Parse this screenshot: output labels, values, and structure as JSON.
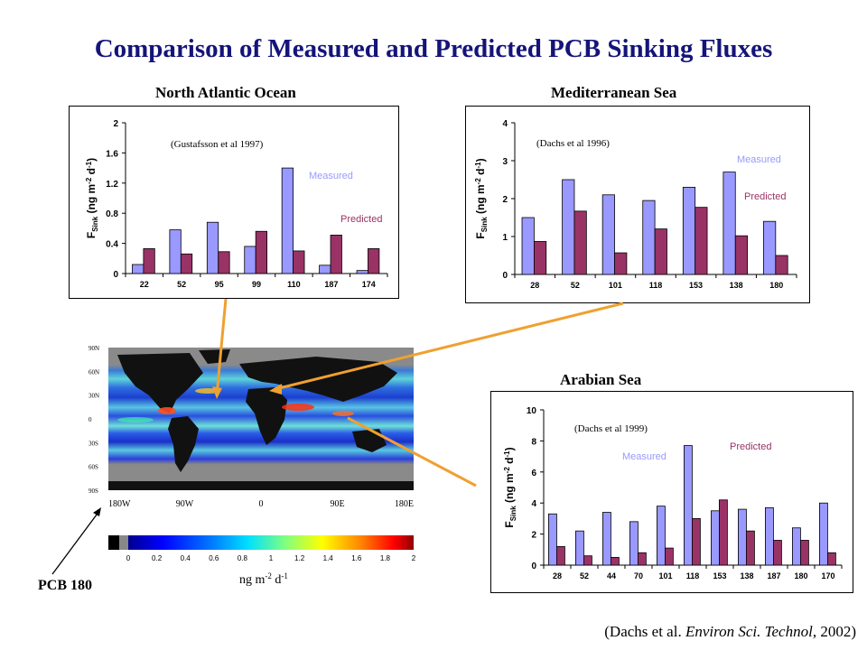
{
  "title": "Comparison of Measured and Predicted PCB Sinking Fluxes",
  "colors": {
    "measured": "#9999ff",
    "predicted": "#993366",
    "title": "#14147a",
    "connector": "#f0a030"
  },
  "chart_data": [
    {
      "type": "bar",
      "panel_title": "North Atlantic Ocean",
      "citation": "(Gustafsson et al 1997)",
      "ylabel_main": "F",
      "ylabel_sub": "Sink",
      "ylabel_rest": " (ng m",
      "ylabel_sup1": "-2",
      "ylabel_mid": " d",
      "ylabel_sup2": "-1",
      "ylabel_end": ")",
      "categories": [
        "22",
        "52",
        "95",
        "99",
        "110",
        "187",
        "174"
      ],
      "yticks": [
        "0",
        "0.4",
        "0.8",
        "1.2",
        "1.6",
        "2"
      ],
      "ylim": [
        0,
        2
      ],
      "series": [
        {
          "name": "Measured",
          "values": [
            0.12,
            0.58,
            0.68,
            0.36,
            1.4,
            0.11,
            0.04
          ]
        },
        {
          "name": "Predicted",
          "values": [
            0.33,
            0.26,
            0.29,
            0.56,
            0.3,
            0.51,
            0.33
          ]
        }
      ]
    },
    {
      "type": "bar",
      "panel_title": "Mediterranean Sea",
      "citation": "(Dachs et al 1996)",
      "ylabel_main": "F",
      "ylabel_sub": "Sink",
      "ylabel_rest": " (ng m",
      "ylabel_sup1": "-2",
      "ylabel_mid": " d",
      "ylabel_sup2": "-1",
      "ylabel_end": ")",
      "categories": [
        "28",
        "52",
        "101",
        "118",
        "153",
        "138",
        "180"
      ],
      "yticks": [
        "0",
        "1",
        "2",
        "3",
        "4"
      ],
      "ylim": [
        0,
        4
      ],
      "series": [
        {
          "name": "Measured",
          "values": [
            1.5,
            2.5,
            2.1,
            1.95,
            2.3,
            2.7,
            1.4
          ]
        },
        {
          "name": "Predicted",
          "values": [
            0.87,
            1.67,
            0.57,
            1.2,
            1.77,
            1.02,
            0.5
          ]
        }
      ]
    },
    {
      "type": "bar",
      "panel_title": "Arabian Sea",
      "citation": "(Dachs et al 1999)",
      "ylabel_main": "F",
      "ylabel_sub": "Sink",
      "ylabel_rest": " (ng m",
      "ylabel_sup1": "-2",
      "ylabel_mid": " d",
      "ylabel_sup2": "-1",
      "ylabel_end": ")",
      "categories": [
        "28",
        "52",
        "44",
        "70",
        "101",
        "118",
        "153",
        "138",
        "187",
        "180",
        "170"
      ],
      "yticks": [
        "0",
        "2",
        "4",
        "6",
        "8",
        "10"
      ],
      "ylim": [
        0,
        10
      ],
      "series": [
        {
          "name": "Measured",
          "values": [
            3.3,
            2.2,
            3.4,
            2.8,
            3.8,
            7.7,
            3.5,
            3.6,
            3.7,
            2.4,
            4.0
          ]
        },
        {
          "name": "Predicted",
          "values": [
            1.2,
            0.6,
            0.5,
            0.8,
            1.1,
            3.0,
            4.2,
            2.2,
            1.6,
            1.6,
            0.8
          ]
        }
      ]
    }
  ],
  "map": {
    "lat_labels": [
      "90N",
      "60N",
      "30N",
      "0",
      "30S",
      "60S",
      "90S"
    ],
    "lon_labels": [
      "180W",
      "90W",
      "0",
      "90E",
      "180E"
    ],
    "colorbar_ticks": [
      "0",
      "0.2",
      "0.4",
      "0.6",
      "0.8",
      "1",
      "1.2",
      "1.4",
      "1.6",
      "1.8",
      "2"
    ],
    "colorbar_unit_main": "ng m",
    "colorbar_unit_sup1": "-2",
    "colorbar_unit_mid": " d",
    "colorbar_unit_sup2": "-1"
  },
  "pcb_label": "PCB 180",
  "footer": {
    "prefix": "(Dachs et al. ",
    "journal": "Environ Sci. Technol,",
    "suffix": " 2002)"
  }
}
